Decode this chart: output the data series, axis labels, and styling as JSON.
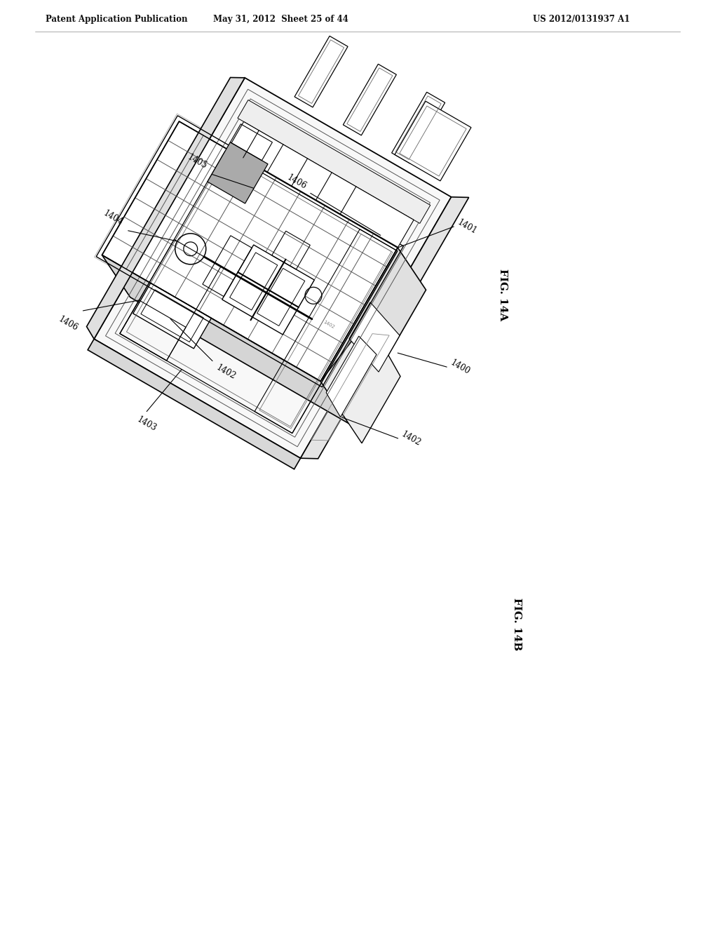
{
  "header_left": "Patent Application Publication",
  "header_center": "May 31, 2012  Sheet 25 of 44",
  "header_right": "US 2012/0131937 A1",
  "fig_14a_label": "FIG. 14A",
  "fig_14b_label": "FIG. 14B",
  "bg_color": "#ffffff",
  "rotation_deg": -30,
  "label_14b_1402": "1402",
  "label_14b_1403": "1403",
  "label_14b_1404": "1404",
  "label_14b_1405": "1405",
  "label_14b_1406": "1406",
  "label_14a_1400": "1400",
  "label_14a_1401": "1401",
  "label_14a_1402": "1402"
}
